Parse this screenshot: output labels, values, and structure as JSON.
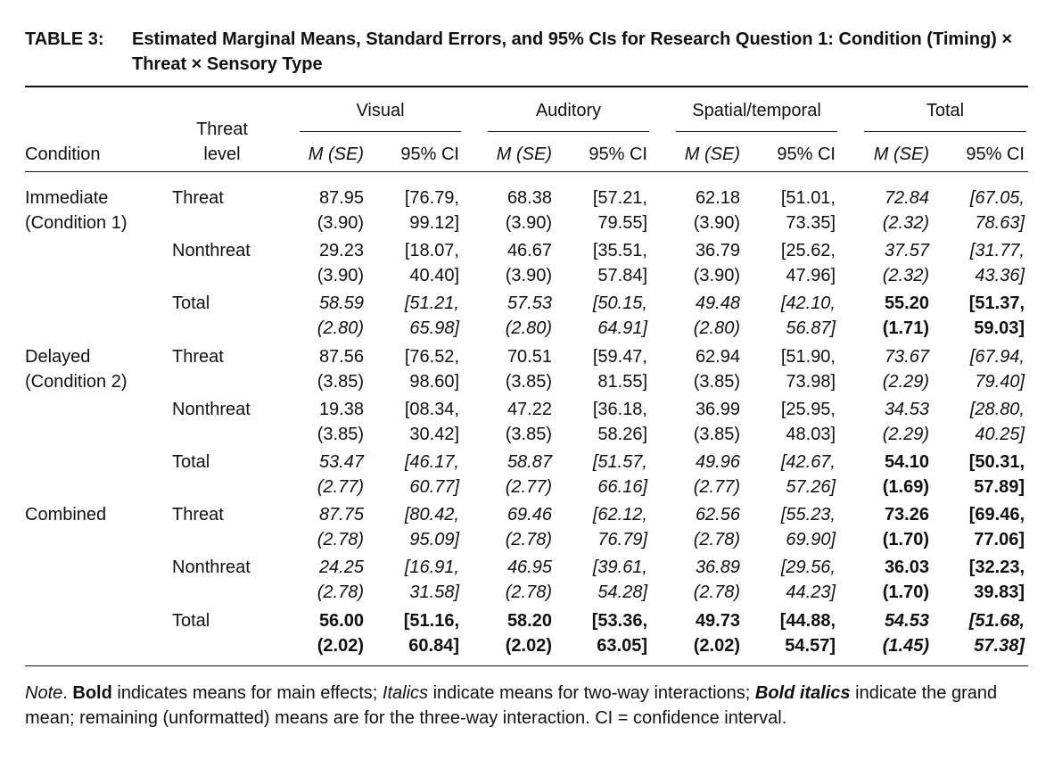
{
  "caption": {
    "label": "TABLE 3:",
    "text": "Estimated Marginal Means, Standard Errors, and 95% CIs for Research Question 1: Condition (Timing) × Threat × Sensory Type"
  },
  "header": {
    "condition": "Condition",
    "threat_level": [
      "Threat",
      "level"
    ],
    "groups": [
      "Visual",
      "Auditory",
      "Spatial/temporal",
      "Total"
    ],
    "m_se": "M (SE)",
    "ci": "95% CI"
  },
  "rows": [
    {
      "cond": [
        "Immediate",
        "(Condition 1)"
      ],
      "level": "Threat",
      "style": [
        "n",
        "n",
        "n",
        "i"
      ],
      "cells": [
        [
          "87.95",
          "(3.90)",
          "[76.79,",
          "99.12]"
        ],
        [
          "68.38",
          "(3.90)",
          "[57.21,",
          "79.55]"
        ],
        [
          "62.18",
          "(3.90)",
          "[51.01,",
          "73.35]"
        ],
        [
          "72.84",
          "(2.32)",
          "[67.05,",
          "78.63]"
        ]
      ]
    },
    {
      "cond": [
        "",
        ""
      ],
      "level": "Nonthreat",
      "style": [
        "n",
        "n",
        "n",
        "i"
      ],
      "cells": [
        [
          "29.23",
          "(3.90)",
          "[18.07,",
          "40.40]"
        ],
        [
          "46.67",
          "(3.90)",
          "[35.51,",
          "57.84]"
        ],
        [
          "36.79",
          "(3.90)",
          "[25.62,",
          "47.96]"
        ],
        [
          "37.57",
          "(2.32)",
          "[31.77,",
          "43.36]"
        ]
      ]
    },
    {
      "cond": [
        "",
        ""
      ],
      "level": "Total",
      "style": [
        "i",
        "i",
        "i",
        "b"
      ],
      "cells": [
        [
          "58.59",
          "(2.80)",
          "[51.21,",
          "65.98]"
        ],
        [
          "57.53",
          "(2.80)",
          "[50.15,",
          "64.91]"
        ],
        [
          "49.48",
          "(2.80)",
          "[42.10,",
          "56.87]"
        ],
        [
          "55.20",
          "(1.71)",
          "[51.37,",
          "59.03]"
        ]
      ]
    },
    {
      "cond": [
        "Delayed",
        "(Condition 2)"
      ],
      "level": "Threat",
      "style": [
        "n",
        "n",
        "n",
        "i"
      ],
      "cells": [
        [
          "87.56",
          "(3.85)",
          "[76.52,",
          "98.60]"
        ],
        [
          "70.51",
          "(3.85)",
          "[59.47,",
          "81.55]"
        ],
        [
          "62.94",
          "(3.85)",
          "[51.90,",
          "73.98]"
        ],
        [
          "73.67",
          "(2.29)",
          "[67.94,",
          "79.40]"
        ]
      ]
    },
    {
      "cond": [
        "",
        ""
      ],
      "level": "Nonthreat",
      "style": [
        "n",
        "n",
        "n",
        "i"
      ],
      "cells": [
        [
          "19.38",
          "(3.85)",
          "[08.34,",
          "30.42]"
        ],
        [
          "47.22",
          "(3.85)",
          "[36.18,",
          "58.26]"
        ],
        [
          "36.99",
          "(3.85)",
          "[25.95,",
          "48.03]"
        ],
        [
          "34.53",
          "(2.29)",
          "[28.80,",
          "40.25]"
        ]
      ]
    },
    {
      "cond": [
        "",
        ""
      ],
      "level": "Total",
      "style": [
        "i",
        "i",
        "i",
        "b"
      ],
      "cells": [
        [
          "53.47",
          "(2.77)",
          "[46.17,",
          "60.77]"
        ],
        [
          "58.87",
          "(2.77)",
          "[51.57,",
          "66.16]"
        ],
        [
          "49.96",
          "(2.77)",
          "[42.67,",
          "57.26]"
        ],
        [
          "54.10",
          "(1.69)",
          "[50.31,",
          "57.89]"
        ]
      ]
    },
    {
      "cond": [
        "Combined",
        ""
      ],
      "level": "Threat",
      "style": [
        "i",
        "i",
        "i",
        "b"
      ],
      "cells": [
        [
          "87.75",
          "(2.78)",
          "[80.42,",
          "95.09]"
        ],
        [
          "69.46",
          "(2.78)",
          "[62.12,",
          "76.79]"
        ],
        [
          "62.56",
          "(2.78)",
          "[55.23,",
          "69.90]"
        ],
        [
          "73.26",
          "(1.70)",
          "[69.46,",
          "77.06]"
        ]
      ]
    },
    {
      "cond": [
        "",
        ""
      ],
      "level": "Nonthreat",
      "style": [
        "i",
        "i",
        "i",
        "b"
      ],
      "cells": [
        [
          "24.25",
          "(2.78)",
          "[16.91,",
          "31.58]"
        ],
        [
          "46.95",
          "(2.78)",
          "[39.61,",
          "54.28]"
        ],
        [
          "36.89",
          "(2.78)",
          "[29.56,",
          "44.23]"
        ],
        [
          "36.03",
          "(1.70)",
          "[32.23,",
          "39.83]"
        ]
      ]
    },
    {
      "cond": [
        "",
        ""
      ],
      "level": "Total",
      "style": [
        "b",
        "b",
        "b",
        "bi"
      ],
      "cells": [
        [
          "56.00",
          "(2.02)",
          "[51.16,",
          "60.84]"
        ],
        [
          "58.20",
          "(2.02)",
          "[53.36,",
          "63.05]"
        ],
        [
          "49.73",
          "(2.02)",
          "[44.88,",
          "54.57]"
        ],
        [
          "54.53",
          "(1.45)",
          "[51.68,",
          "57.38]"
        ]
      ]
    }
  ],
  "note": {
    "note_label": "Note",
    "p1": ". ",
    "bold_word": "Bold",
    "p2": " indicates means for main effects; ",
    "italic_word": "Italics",
    "p3": " indicate means for two-way interactions; ",
    "bolditalic_word": "Bold italics",
    "p4": " indicate the grand mean; remaining (unformatted) means are for the three-way interaction. CI = confidence interval."
  }
}
